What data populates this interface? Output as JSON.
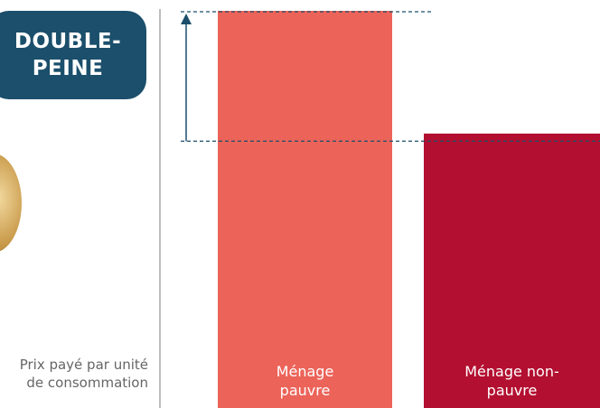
{
  "chart_data": {
    "type": "bar",
    "title": "DOUBLE-PEINE",
    "y_label": "Prix payé par unité de consommation",
    "categories": [
      "Ménage pauvre",
      "Ménage non-pauvre"
    ],
    "values": [
      100,
      69
    ],
    "colors": [
      "#ec6359",
      "#b30f30"
    ],
    "ylim": [
      0,
      100
    ]
  }
}
